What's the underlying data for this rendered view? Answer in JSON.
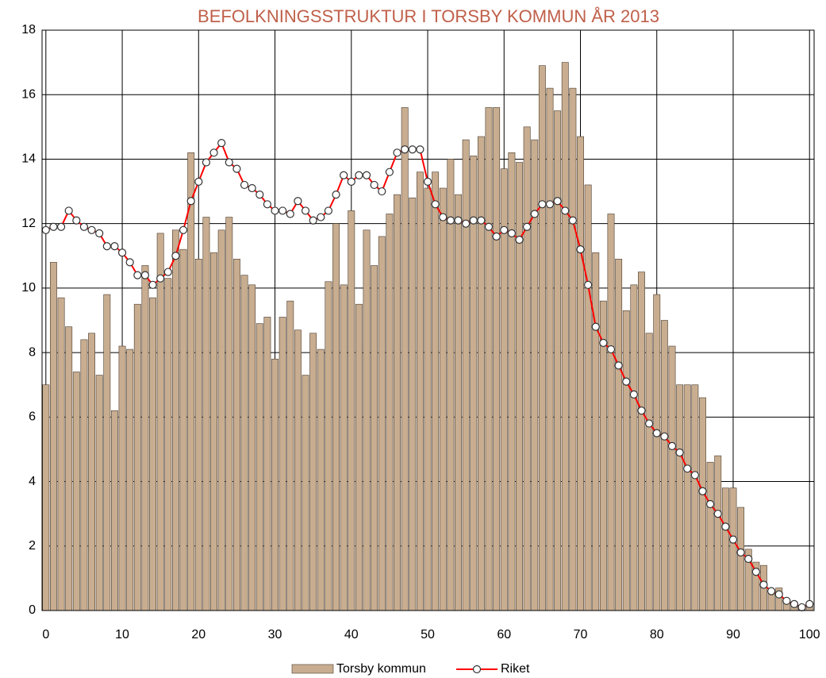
{
  "chart_data": {
    "type": "bar",
    "title": "BEFOLKNINGSSTRUKTUR I TORSBY KOMMUN ÅR 2013",
    "x": [
      0,
      1,
      2,
      3,
      4,
      5,
      6,
      7,
      8,
      9,
      10,
      11,
      12,
      13,
      14,
      15,
      16,
      17,
      18,
      19,
      20,
      21,
      22,
      23,
      24,
      25,
      26,
      27,
      28,
      29,
      30,
      31,
      32,
      33,
      34,
      35,
      36,
      37,
      38,
      39,
      40,
      41,
      42,
      43,
      44,
      45,
      46,
      47,
      48,
      49,
      50,
      51,
      52,
      53,
      54,
      55,
      56,
      57,
      58,
      59,
      60,
      61,
      62,
      63,
      64,
      65,
      66,
      67,
      68,
      69,
      70,
      71,
      72,
      73,
      74,
      75,
      76,
      77,
      78,
      79,
      80,
      81,
      82,
      83,
      84,
      85,
      86,
      87,
      88,
      89,
      90,
      91,
      92,
      93,
      94,
      95,
      96,
      97,
      98,
      99,
      100
    ],
    "series": [
      {
        "name": "Torsby kommun",
        "type": "bar",
        "color": "#c8ad90",
        "values": [
          7.0,
          10.8,
          9.7,
          8.8,
          7.4,
          8.4,
          8.6,
          7.3,
          9.8,
          6.2,
          8.2,
          8.1,
          9.5,
          10.7,
          9.7,
          11.7,
          10.3,
          11.8,
          11.2,
          14.2,
          10.9,
          12.2,
          11.1,
          11.8,
          12.2,
          10.9,
          10.4,
          10.1,
          8.9,
          9.1,
          7.8,
          9.1,
          9.6,
          8.7,
          7.3,
          8.6,
          8.1,
          10.2,
          12.0,
          10.1,
          12.4,
          9.5,
          11.8,
          10.7,
          11.6,
          12.3,
          12.9,
          15.6,
          12.8,
          13.6,
          13.1,
          13.6,
          13.1,
          14.0,
          12.9,
          14.6,
          14.1,
          14.7,
          15.6,
          15.6,
          13.7,
          14.2,
          13.9,
          15.0,
          14.6,
          16.9,
          16.2,
          15.5,
          17.0,
          16.2,
          14.7,
          13.2,
          11.1,
          9.6,
          12.3,
          10.9,
          9.3,
          10.1,
          10.5,
          8.6,
          9.8,
          9.0,
          8.2,
          7.0,
          7.0,
          7.0,
          6.6,
          4.6,
          4.8,
          3.8,
          3.8,
          3.2,
          1.9,
          1.5,
          1.4,
          0.6,
          0.7,
          0.3,
          0.2,
          0.1,
          0.2
        ]
      },
      {
        "name": "Riket",
        "type": "line",
        "color": "#ff0000",
        "values": [
          11.8,
          11.9,
          11.9,
          12.4,
          12.1,
          11.9,
          11.8,
          11.7,
          11.3,
          11.3,
          11.1,
          10.8,
          10.4,
          10.4,
          10.1,
          10.3,
          10.5,
          11.0,
          11.8,
          12.7,
          13.3,
          13.9,
          14.2,
          14.5,
          13.9,
          13.7,
          13.2,
          13.1,
          12.9,
          12.6,
          12.4,
          12.4,
          12.3,
          12.7,
          12.4,
          12.1,
          12.2,
          12.4,
          12.9,
          13.5,
          13.3,
          13.5,
          13.5,
          13.2,
          13.0,
          13.6,
          14.2,
          14.3,
          14.3,
          14.3,
          13.3,
          12.6,
          12.2,
          12.1,
          12.1,
          12.0,
          12.1,
          12.1,
          11.9,
          11.6,
          11.8,
          11.7,
          11.5,
          11.9,
          12.3,
          12.6,
          12.6,
          12.7,
          12.4,
          12.1,
          11.2,
          10.1,
          8.8,
          8.3,
          8.1,
          7.6,
          7.1,
          6.7,
          6.2,
          5.8,
          5.5,
          5.4,
          5.1,
          4.9,
          4.4,
          4.2,
          3.7,
          3.3,
          3.0,
          2.6,
          2.2,
          1.8,
          1.6,
          1.2,
          0.8,
          0.6,
          0.5,
          0.3,
          0.2,
          0.1,
          0.2
        ]
      }
    ],
    "xlim": [
      -0.5,
      100.6
    ],
    "xticks": [
      0,
      10,
      20,
      30,
      40,
      50,
      60,
      70,
      80,
      90,
      100
    ],
    "ylim": [
      0,
      18
    ],
    "yticks": [
      0,
      2,
      4,
      6,
      8,
      10,
      12,
      14,
      16,
      18
    ],
    "grid": true,
    "legend": "bottom"
  }
}
